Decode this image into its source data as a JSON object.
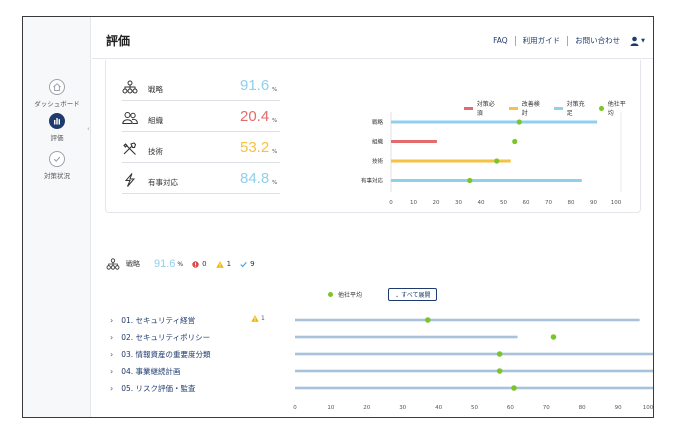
{
  "header": {
    "title": "評価",
    "nav": [
      {
        "label": "FAQ"
      },
      {
        "label": "利用ガイド"
      },
      {
        "label": "お問い合わせ"
      }
    ]
  },
  "sidebar": {
    "items": [
      {
        "label": "ダッシュボード",
        "icon": "home-icon"
      },
      {
        "label": "評価",
        "icon": "bar-chart-icon",
        "active": true
      },
      {
        "label": "対策状況",
        "icon": "check-circle-icon"
      }
    ]
  },
  "metrics": [
    {
      "label": "戦略",
      "value": "91.6",
      "unit": "%",
      "color": "#8fd0ee",
      "icon": "hierarchy-icon"
    },
    {
      "label": "組織",
      "value": "20.4",
      "unit": "%",
      "color": "#e46b6b",
      "icon": "people-icon"
    },
    {
      "label": "技術",
      "value": "53.2",
      "unit": "%",
      "color": "#f5c242",
      "icon": "tools-icon"
    },
    {
      "label": "有事対応",
      "value": "84.8",
      "unit": "%",
      "color": "#8fd0ee",
      "icon": "lightning-icon"
    }
  ],
  "legend": {
    "items": [
      {
        "label": "対策必須",
        "color": "#e46b6b"
      },
      {
        "label": "改善検討",
        "color": "#f5c242"
      },
      {
        "label": "対策充足",
        "color": "#8fd0ee"
      }
    ],
    "peer_label": "他社平均",
    "peer_color": "#7cc42a"
  },
  "chart_data": [
    {
      "type": "bar",
      "categories": [
        "戦略",
        "組織",
        "技術",
        "有事対応"
      ],
      "series": [
        {
          "name": "",
          "values": [
            91.6,
            20.4,
            53.2,
            84.8
          ]
        },
        {
          "name": "他社平均",
          "values": [
            57,
            55,
            47,
            35
          ]
        }
      ],
      "bar_colors": [
        "#8fd0ee",
        "#e46b6b",
        "#f5c242",
        "#8fd0ee"
      ],
      "xlim": [
        0,
        100
      ],
      "xticks": [
        0,
        10,
        20,
        30,
        40,
        50,
        60,
        70,
        80,
        90,
        100
      ]
    },
    {
      "type": "bar",
      "categories": [
        "01. セキュリティ経営",
        "02. セキュリティポリシー",
        "03. 情報資産の重要度分類",
        "04. 事業継続計画",
        "05. リスク評価・監査"
      ],
      "series": [
        {
          "name": "",
          "values": [
            96,
            62,
            100,
            100,
            100
          ]
        },
        {
          "name": "他社平均",
          "values": [
            37,
            72,
            57,
            57,
            61
          ]
        }
      ],
      "bar_color": "#a8c2dc",
      "xlim": [
        0,
        100
      ],
      "xticks": [
        0,
        10,
        20,
        30,
        40,
        50,
        60,
        70,
        80,
        90,
        100
      ]
    }
  ],
  "summary": {
    "label": "戦略",
    "value": "91.6",
    "unit": "%",
    "errors": "0",
    "warnings": "1",
    "ok": "9"
  },
  "controls": {
    "peer_label": "他社平均",
    "expand_label": "すべて展開"
  },
  "rows": [
    {
      "label": "01. セキュリティ経営",
      "warning": "1"
    },
    {
      "label": "02. セキュリティポリシー"
    },
    {
      "label": "03. 情報資産の重要度分類"
    },
    {
      "label": "04. 事業継続計画"
    },
    {
      "label": "05. リスク評価・監査"
    }
  ]
}
